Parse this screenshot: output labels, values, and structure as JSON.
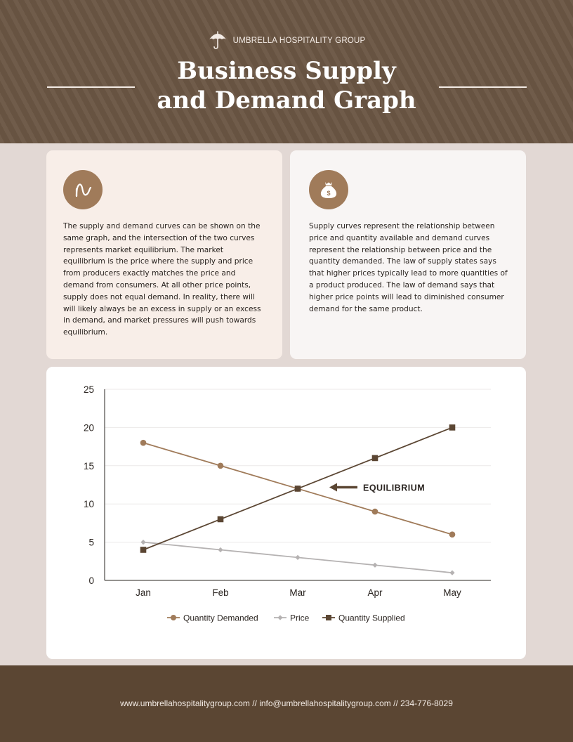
{
  "header": {
    "brand": "UMBRELLA HOSPITALITY GROUP",
    "brand_icon": "umbrella-icon",
    "title_line1": "Business Supply",
    "title_line2": "and Demand Graph"
  },
  "cards": [
    {
      "icon": "wave-curve-icon",
      "text": "The supply and demand curves can be shown on the same graph, and the intersection of the two curves represents market equilibrium. The market equilibrium is the price where the supply and price from producers exactly matches the price and demand from consumers. At all other price points, supply does not equal demand. In reality, there will will likely always be an excess in supply or an excess in demand, and market pressures will push towards equilibrium."
    },
    {
      "icon": "money-bag-icon",
      "text": "Supply curves represent the relationship between price and quantity available and demand curves represent the relationship between price and the quantity demanded. The law of supply states says that higher prices typically lead to more quantities of a product produced. The law of demand says that higher price points will lead to diminished consumer demand for the same product."
    }
  ],
  "chart_data": {
    "type": "line",
    "categories": [
      "Jan",
      "Feb",
      "Mar",
      "Apr",
      "May"
    ],
    "ylim": [
      0,
      25
    ],
    "yticks": [
      0,
      5,
      10,
      15,
      20,
      25
    ],
    "grid": true,
    "legend_position": "bottom",
    "series": [
      {
        "name": "Quantity Demanded",
        "values": [
          18,
          15,
          12,
          9,
          6
        ],
        "color": "#a07b5a",
        "marker": "circle"
      },
      {
        "name": "Price",
        "values": [
          5,
          4,
          3,
          2,
          1
        ],
        "color": "#b5b2b2",
        "marker": "diamond"
      },
      {
        "name": "Quantity Supplied",
        "values": [
          4,
          8,
          12,
          16,
          20
        ],
        "color": "#5b4633",
        "marker": "square"
      }
    ],
    "annotation": {
      "label": "EQUILIBRIUM",
      "category": "Mar",
      "value": 12
    }
  },
  "colors": {
    "header_bg": "#6b5644",
    "accent": "#a07b5a",
    "dark": "#5b4633",
    "page_bg": "#e2d8d4"
  },
  "footer": {
    "text": "www.umbrellahospitalitygroup.com  // info@umbrellahospitalitygroup.com  // 234-776-8029"
  }
}
